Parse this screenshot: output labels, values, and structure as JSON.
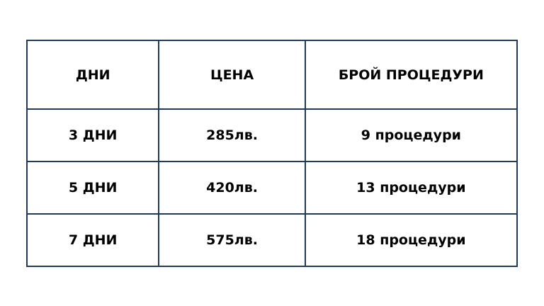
{
  "table": {
    "headers": [
      "ДНИ",
      "ЦЕНА",
      "БРОЙ ПРОЦЕДУРИ"
    ],
    "rows": [
      [
        "3 ДНИ",
        "285лв.",
        "9 процедури"
      ],
      [
        "5 ДНИ",
        "420лв.",
        "13 процедури"
      ],
      [
        "7 ДНИ",
        "575лв.",
        "18 процедури"
      ]
    ],
    "border_color": "#1f3a5a"
  }
}
